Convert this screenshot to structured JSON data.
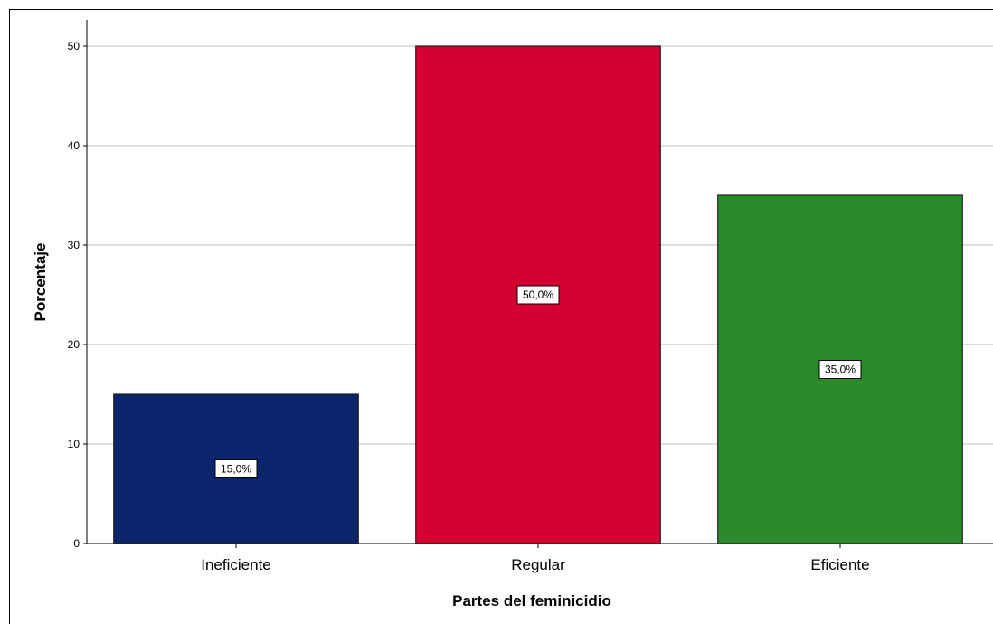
{
  "chart_data": {
    "type": "bar",
    "categories": [
      "Ineficiente",
      "Regular",
      "Eficiente"
    ],
    "values": [
      15,
      50,
      35
    ],
    "data_labels": [
      "15,0%",
      "50,0%",
      "35,0%"
    ],
    "colors": [
      "#0b246b",
      "#d50032",
      "#2a8a2a"
    ],
    "xlabel": "Partes del feminicidio",
    "ylabel": "Porcentaje",
    "ylim": [
      0,
      50
    ],
    "yticks": [
      0,
      10,
      20,
      30,
      40,
      50
    ],
    "grid": true,
    "legend": "none"
  }
}
